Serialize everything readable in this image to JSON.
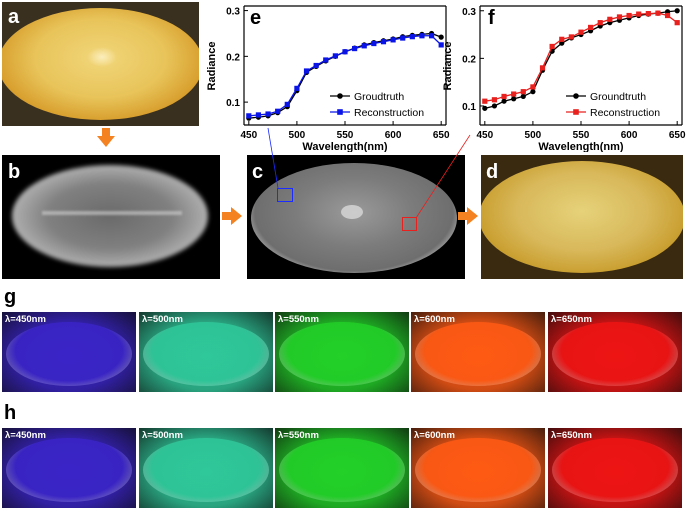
{
  "panels": {
    "a": "a",
    "b": "b",
    "c": "c",
    "d": "d",
    "e": "e",
    "f": "f",
    "g": "g",
    "h": "h"
  },
  "wavelength_labels": [
    "λ=450nm",
    "λ=500nm",
    "λ=550nm",
    "λ=600nm",
    "λ=650nm"
  ],
  "tile_colors": [
    "#3a24c8",
    "#2fc89a",
    "#22d028",
    "#ff5a14",
    "#ee1414"
  ],
  "chart_data": [
    {
      "type": "line",
      "panel": "e",
      "xlabel": "Wavelength(nm)",
      "ylabel": "Radiance",
      "xlim": [
        445,
        655
      ],
      "ylim": [
        0.05,
        0.31
      ],
      "xticks": [
        450,
        500,
        550,
        600,
        650
      ],
      "yticks": [
        0.1,
        0.2,
        0.3
      ],
      "legend_position": "lower-right",
      "x": [
        450,
        460,
        470,
        480,
        490,
        500,
        510,
        520,
        530,
        540,
        550,
        560,
        570,
        580,
        590,
        600,
        610,
        620,
        630,
        640,
        650
      ],
      "series": [
        {
          "name": "Groudtruth",
          "color": "#000000",
          "marker": "circle",
          "values": [
            0.065,
            0.067,
            0.07,
            0.077,
            0.09,
            0.125,
            0.165,
            0.178,
            0.19,
            0.2,
            0.21,
            0.218,
            0.225,
            0.23,
            0.234,
            0.238,
            0.243,
            0.246,
            0.248,
            0.25,
            0.242
          ]
        },
        {
          "name": "Reconstruction",
          "color": "#0a14e6",
          "marker": "square",
          "values": [
            0.07,
            0.072,
            0.074,
            0.08,
            0.095,
            0.13,
            0.168,
            0.18,
            0.192,
            0.201,
            0.21,
            0.217,
            0.223,
            0.228,
            0.232,
            0.236,
            0.24,
            0.243,
            0.245,
            0.245,
            0.225
          ]
        }
      ]
    },
    {
      "type": "line",
      "panel": "f",
      "xlabel": "Wavelength(nm)",
      "ylabel": "Radiance",
      "xlim": [
        445,
        655
      ],
      "ylim": [
        0.06,
        0.31
      ],
      "xticks": [
        450,
        500,
        550,
        600,
        650
      ],
      "yticks": [
        0.1,
        0.2,
        0.3
      ],
      "legend_position": "lower-right",
      "x": [
        450,
        460,
        470,
        480,
        490,
        500,
        510,
        520,
        530,
        540,
        550,
        560,
        570,
        580,
        590,
        600,
        610,
        620,
        630,
        640,
        650
      ],
      "series": [
        {
          "name": "Groundtruth",
          "color": "#000000",
          "marker": "circle",
          "values": [
            0.095,
            0.1,
            0.11,
            0.115,
            0.12,
            0.13,
            0.175,
            0.215,
            0.232,
            0.243,
            0.25,
            0.258,
            0.268,
            0.275,
            0.28,
            0.285,
            0.29,
            0.293,
            0.295,
            0.298,
            0.3
          ]
        },
        {
          "name": "Reconstruction",
          "color": "#e8201e",
          "marker": "square",
          "values": [
            0.11,
            0.113,
            0.12,
            0.125,
            0.13,
            0.14,
            0.18,
            0.225,
            0.24,
            0.245,
            0.255,
            0.265,
            0.275,
            0.282,
            0.287,
            0.29,
            0.293,
            0.294,
            0.295,
            0.29,
            0.275
          ]
        }
      ]
    }
  ]
}
